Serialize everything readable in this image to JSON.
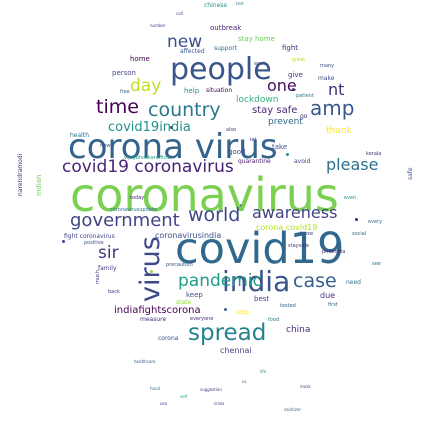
{
  "word_cloud": {
    "words": [
      {
        "text": "coronavirus",
        "color": "#7ad151"
      },
      {
        "text": "covid19",
        "color": "#31688e"
      },
      {
        "text": "corona virus",
        "color": "#33638d"
      },
      {
        "text": "people",
        "color": "#39558c"
      },
      {
        "text": "india",
        "color": "#3b528b"
      },
      {
        "text": "virus",
        "color": "#3e4989"
      },
      {
        "text": "spread",
        "color": "#26828e"
      },
      {
        "text": "government",
        "color": "#414487"
      },
      {
        "text": "world",
        "color": "#3f4788"
      },
      {
        "text": "country",
        "color": "#2a788e"
      },
      {
        "text": "covid19 coronavirus",
        "color": "#482374"
      },
      {
        "text": "time",
        "color": "#440154"
      },
      {
        "text": "amp",
        "color": "#38598c"
      },
      {
        "text": "pandemic",
        "color": "#1f9e89"
      },
      {
        "text": "case",
        "color": "#355f8d"
      },
      {
        "text": "awareness",
        "color": "#424086"
      },
      {
        "text": "sir",
        "color": "#443983"
      },
      {
        "text": "please",
        "color": "#2c718e"
      },
      {
        "text": "new",
        "color": "#3d4d8a"
      },
      {
        "text": "day",
        "color": "#bddf26"
      },
      {
        "text": "one",
        "color": "#460b5e"
      },
      {
        "text": "nt",
        "color": "#46307e"
      },
      {
        "text": "covid19india",
        "color": "#21918c"
      },
      {
        "text": "indiafightscorona",
        "color": "#440154"
      },
      {
        "text": "coronavirusindia",
        "color": "#3b528b"
      },
      {
        "text": "lockdown",
        "color": "#2db27d"
      },
      {
        "text": "stay safe",
        "color": "#482878"
      },
      {
        "text": "stay home",
        "color": "#6ece58"
      },
      {
        "text": "prevent",
        "color": "#31688e"
      },
      {
        "text": "thank",
        "color": "#fde725"
      },
      {
        "text": "chennai",
        "color": "#414487"
      },
      {
        "text": "china",
        "color": "#482878"
      },
      {
        "text": "due",
        "color": "#46327e"
      },
      {
        "text": "best",
        "color": "#443a83"
      },
      {
        "text": "keep",
        "color": "#3b528b"
      },
      {
        "text": "home",
        "color": "#440154"
      },
      {
        "text": "outbreak",
        "color": "#482475"
      },
      {
        "text": "support",
        "color": "#31688e"
      },
      {
        "text": "fight",
        "color": "#482878"
      },
      {
        "text": "affected",
        "color": "#39568c"
      },
      {
        "text": "person",
        "color": "#3e4a89"
      },
      {
        "text": "help",
        "color": "#21918c"
      },
      {
        "text": "health",
        "color": "#2c728e"
      },
      {
        "text": "quarantine",
        "color": "#481769"
      },
      {
        "text": "avoid",
        "color": "#3e4989"
      },
      {
        "text": "make",
        "color": "#3b528b"
      },
      {
        "text": "corona covid19",
        "color": "#b5de2b"
      },
      {
        "text": "fight coronavirus",
        "color": "#414487"
      },
      {
        "text": "positive",
        "color": "#3b528b"
      },
      {
        "text": "family",
        "color": "#433d84"
      },
      {
        "text": "state",
        "color": "#8fd744"
      },
      {
        "text": "measure",
        "color": "#472d7b"
      },
      {
        "text": "everyone",
        "color": "#482878"
      },
      {
        "text": "corona",
        "color": "#3e4989"
      },
      {
        "text": "need",
        "color": "#2a788e"
      },
      {
        "text": "first",
        "color": "#2e6e8e"
      },
      {
        "text": "precaution",
        "color": "#3b528b"
      },
      {
        "text": "stop",
        "color": "#fde725"
      },
      {
        "text": "give",
        "color": "#46327e"
      },
      {
        "text": "good",
        "color": "#3e4989"
      },
      {
        "text": "tested",
        "color": "#31688e"
      },
      {
        "text": "situation",
        "color": "#440154"
      },
      {
        "text": "patient",
        "color": "#2a788e"
      },
      {
        "text": "chinese",
        "color": "#21918c"
      },
      {
        "text": "safe",
        "color": "#3b528b"
      },
      {
        "text": "indian",
        "color": "#6ece58"
      },
      {
        "text": "narendramodi",
        "color": "#482878"
      },
      {
        "text": "kerala",
        "color": "#46327e"
      },
      {
        "text": "every",
        "color": "#31688e"
      },
      {
        "text": "many",
        "color": "#3e4989"
      },
      {
        "text": "go",
        "color": "#482878"
      },
      {
        "text": "also",
        "color": "#443983"
      },
      {
        "text": "take",
        "color": "#3b528b"
      },
      {
        "text": "food",
        "color": "#2a788e"
      },
      {
        "text": "back",
        "color": "#3e4989"
      },
      {
        "text": "even",
        "color": "#21918c"
      },
      {
        "text": "free",
        "color": "#31688e"
      },
      {
        "text": "much",
        "color": "#46327e"
      },
      {
        "text": "let",
        "color": "#443983"
      },
      {
        "text": "know",
        "color": "#3e4989"
      },
      {
        "text": "see",
        "color": "#2a788e"
      },
      {
        "text": "great",
        "color": "#b5de2b"
      },
      {
        "text": "work",
        "color": "#3b528b"
      },
      {
        "text": "today",
        "color": "#482878"
      },
      {
        "text": "vijaybhoskarofficial",
        "color": "#1f9e89"
      },
      {
        "text": "staysafe",
        "color": "#46327e"
      },
      {
        "text": "social",
        "color": "#31688e"
      },
      {
        "text": "news",
        "color": "#3e4989"
      },
      {
        "text": "coronavirusupdate",
        "color": "#2c728e"
      },
      {
        "text": "pmoindia",
        "color": "#482878"
      },
      {
        "text": "healthcare",
        "color": "#3b528b"
      },
      {
        "text": "suggestion",
        "color": "#443983"
      },
      {
        "text": "life",
        "color": "#21918c"
      },
      {
        "text": "us",
        "color": "#31688e"
      },
      {
        "text": "hand",
        "color": "#2a788e"
      },
      {
        "text": "use",
        "color": "#46327e"
      },
      {
        "text": "mask",
        "color": "#3e4989"
      },
      {
        "text": "self",
        "color": "#1f9e89"
      },
      {
        "text": "crisis",
        "color": "#482878"
      },
      {
        "text": "call",
        "color": "#3b528b"
      },
      {
        "text": "number",
        "color": "#443983"
      },
      {
        "text": "test",
        "color": "#2a788e"
      },
      {
        "text": "sanitizer",
        "color": "#31688e"
      }
    ]
  }
}
